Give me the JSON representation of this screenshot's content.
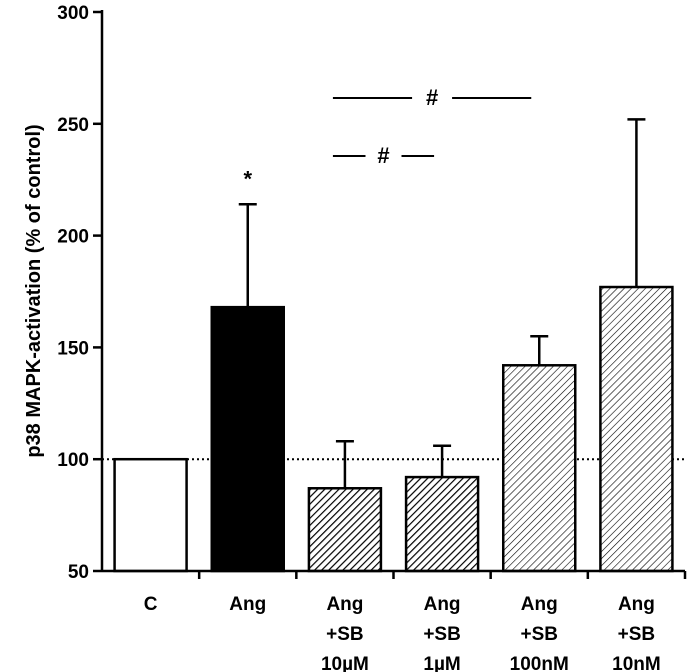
{
  "chart_data": {
    "type": "bar",
    "ylabel": "p38 MAPK-activation (% of control)",
    "xlabel": "",
    "ylim": [
      50,
      300
    ],
    "yticks": [
      50,
      100,
      150,
      200,
      250,
      300
    ],
    "reference_line": 100,
    "categories": [
      [
        "C"
      ],
      [
        "Ang"
      ],
      [
        "Ang",
        "+SB",
        "10µM"
      ],
      [
        "Ang",
        "+SB",
        "1µM"
      ],
      [
        "Ang",
        "+SB",
        "100nM"
      ],
      [
        "Ang",
        "+SB",
        "10nM"
      ]
    ],
    "values": [
      100,
      168,
      87,
      92,
      142,
      177
    ],
    "errors": [
      0,
      46,
      21,
      14,
      13,
      75
    ],
    "fills": [
      "white",
      "black",
      "hatch-dense",
      "hatch-dense",
      "hatch-light",
      "hatch-light"
    ],
    "annotations": [
      {
        "text": "*",
        "bar": 1
      },
      {
        "text": "#",
        "from_bar": 2,
        "to_bar": 3
      },
      {
        "text": "#",
        "from_bar": 2,
        "to_bar": 4
      }
    ]
  }
}
